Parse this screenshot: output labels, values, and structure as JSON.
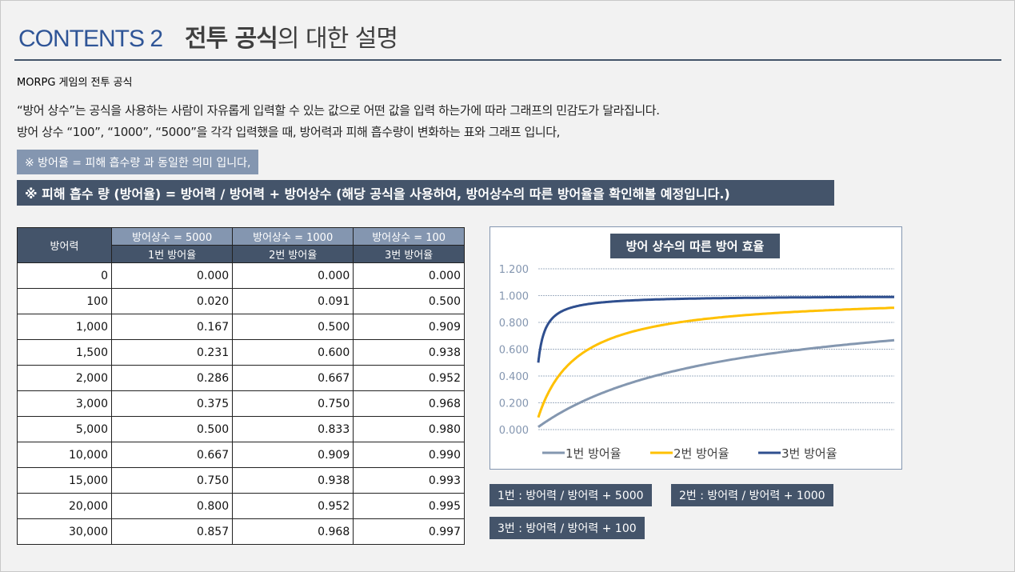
{
  "title": {
    "prefix": "CONTENTS 2",
    "bold": "전투 공식",
    "rest": "의 대한 설명"
  },
  "subtitle": "MORPG 게임의 전투 공식",
  "paragraphs": [
    "“방어 상수”는 공식을 사용하는 사람이 자유롭게 입력할 수 있는 값으로 어떤 값을 입력 하는가에 따라 그래프의 민감도가 달라집니다.",
    "방어 상수 “100”, “1000”, “5000”을 각각 입력했을 때, 방어력과 피해 흡수량이 변화하는 표와 그래프 입니다,"
  ],
  "notes": [
    "※ 방어율 = 피해 흡수량 과 동일한 의미 입니다,",
    "※ 피해 흡수 량 (방어율) = 방어력 / 방어력 + 방어상수 (해당 공식을 사용하여, 방어상수의 따른 방어율을 확인해볼 예정입니다.)"
  ],
  "table": {
    "col0": "방어력",
    "constants": [
      "방어상수 = 5000",
      "방어상수 = 1000",
      "방어상수 = 100"
    ],
    "series": [
      "1번 방어율",
      "2번 방어율",
      "3번 방어율"
    ],
    "rows": [
      [
        "0",
        "0.000",
        "0.000",
        "0.000"
      ],
      [
        "100",
        "0.020",
        "0.091",
        "0.500"
      ],
      [
        "1,000",
        "0.167",
        "0.500",
        "0.909"
      ],
      [
        "1,500",
        "0.231",
        "0.600",
        "0.938"
      ],
      [
        "2,000",
        "0.286",
        "0.667",
        "0.952"
      ],
      [
        "3,000",
        "0.375",
        "0.750",
        "0.968"
      ],
      [
        "5,000",
        "0.500",
        "0.833",
        "0.980"
      ],
      [
        "10,000",
        "0.667",
        "0.909",
        "0.990"
      ],
      [
        "15,000",
        "0.750",
        "0.938",
        "0.993"
      ],
      [
        "20,000",
        "0.800",
        "0.952",
        "0.995"
      ],
      [
        "30,000",
        "0.857",
        "0.968",
        "0.997"
      ]
    ]
  },
  "chart_data": {
    "type": "line",
    "title": "방어 상수의 따른 방어 효율",
    "x_range": [
      100,
      10000
    ],
    "ylim": [
      0,
      1.2
    ],
    "yticks": [
      "0.000",
      "0.200",
      "0.400",
      "0.600",
      "0.800",
      "1.000",
      "1.200"
    ],
    "legend_position": "bottom",
    "series": [
      {
        "name": "1번 방어율",
        "constant": 5000,
        "color": "#8497b0"
      },
      {
        "name": "2번 방어율",
        "constant": 1000,
        "color": "#ffc000"
      },
      {
        "name": "3번 방어율",
        "constant": 100,
        "color": "#2f4f8f"
      }
    ]
  },
  "formulas": [
    "1번 : 방어력 / 방어력 + 5000",
    "2번 : 방어력 / 방어력 + 1000",
    "3번 : 방어력 / 방어력 + 100"
  ]
}
